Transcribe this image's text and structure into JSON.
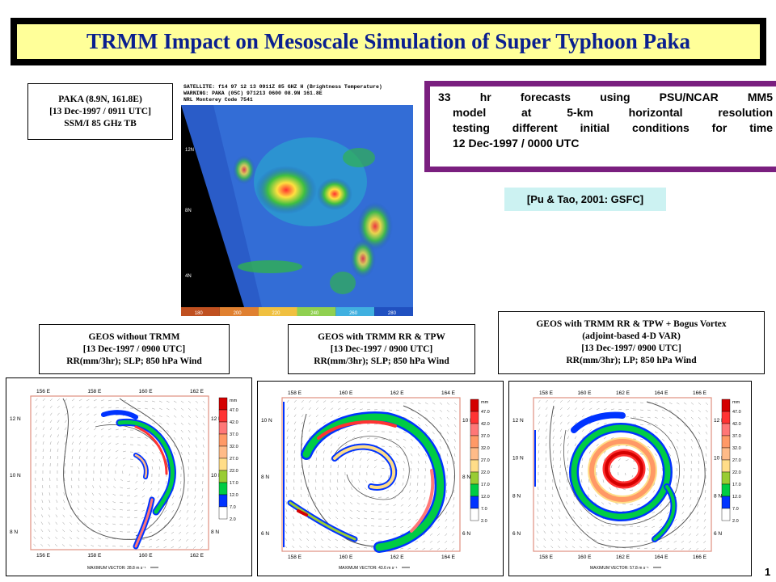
{
  "title": "TRMM Impact on Mesoscale Simulation of Super Typhoon Paka",
  "satellite_label": {
    "line1": "PAKA (8.9N, 161.8E)",
    "line2": "[13 Dec-1997 / 0911 UTC]",
    "line3": "SSM/I 85 GHz TB"
  },
  "satellite_image": {
    "header1": "SATELLITE: f14 97 12 13 0911Z 85 GHZ H (Brightness Temperature)",
    "header2": "WARNING: PAKA (05C) 971213 0600 08.9N 161.8E",
    "header3": "NRL Monterey Code 7541",
    "lat_labels": [
      "12N",
      "8N",
      "4N"
    ],
    "colorbar_ticks": [
      "180",
      "200",
      "220",
      "240",
      "260",
      "280"
    ]
  },
  "forecast": {
    "lines": [
      "33 hr forecasts using PSU/NCAR MM5",
      "model at 5-km horizontal resolution",
      "testing different initial conditions for time",
      "12 Dec-1997 / 0000 UTC"
    ]
  },
  "citation": "[Pu & Tao, 2001: GSFC]",
  "panels": [
    {
      "label": [
        "GEOS  without TRMM",
        "[13 Dec-1997 / 0900 UTC]",
        "RR(mm/3hr); SLP; 850 hPa Wind"
      ],
      "lon_labels": [
        "156 E",
        "158 E",
        "160 E",
        "162 E"
      ],
      "lat_labels": [
        "12 N",
        "10 N",
        "8 N"
      ],
      "max_vector": "MAXIMUM VECTOR:  28.8 m s⁻¹"
    },
    {
      "label": [
        "GEOS  with TRMM RR & TPW",
        "[13 Dec-1997 / 0900 UTC]",
        "RR(mm/3hr); SLP; 850 hPa Wind"
      ],
      "lon_labels": [
        "158 E",
        "160 E",
        "162 E",
        "164 E"
      ],
      "lat_labels": [
        "10 N",
        "8 N",
        "6 N"
      ],
      "max_vector": "MAXIMUM VECTOR:  43.6 m s⁻¹"
    },
    {
      "label": [
        "GEOS  with TRMM RR & TPW + Bogus Vortex",
        "(adjoint-based 4-D VAR)",
        "[13 Dec-1997/  0900 UTC]",
        "RR(mm/3hr); LP; 850 hPa Wind"
      ],
      "lon_labels": [
        "158 E",
        "160 E",
        "162 E",
        "164 E",
        "166 E"
      ],
      "lat_labels": [
        "12 N",
        "10 N",
        "8 N",
        "6 N"
      ],
      "max_vector": "MAXIMUM VECTOR:  57.8 m s⁻¹"
    }
  ],
  "colorbar": {
    "unit": "mm",
    "ticks": [
      "47.0",
      "42.0",
      "37.0",
      "32.0",
      "27.0",
      "22.0",
      "17.0",
      "12.0",
      "7.0",
      "2.0"
    ],
    "colors": [
      "#d40000",
      "#ff3333",
      "#ff7777",
      "#ff9966",
      "#ffbb88",
      "#ffdd88",
      "#99cc33",
      "#00cc44",
      "#0033ff",
      "#ffffff"
    ]
  },
  "page_number": "1"
}
